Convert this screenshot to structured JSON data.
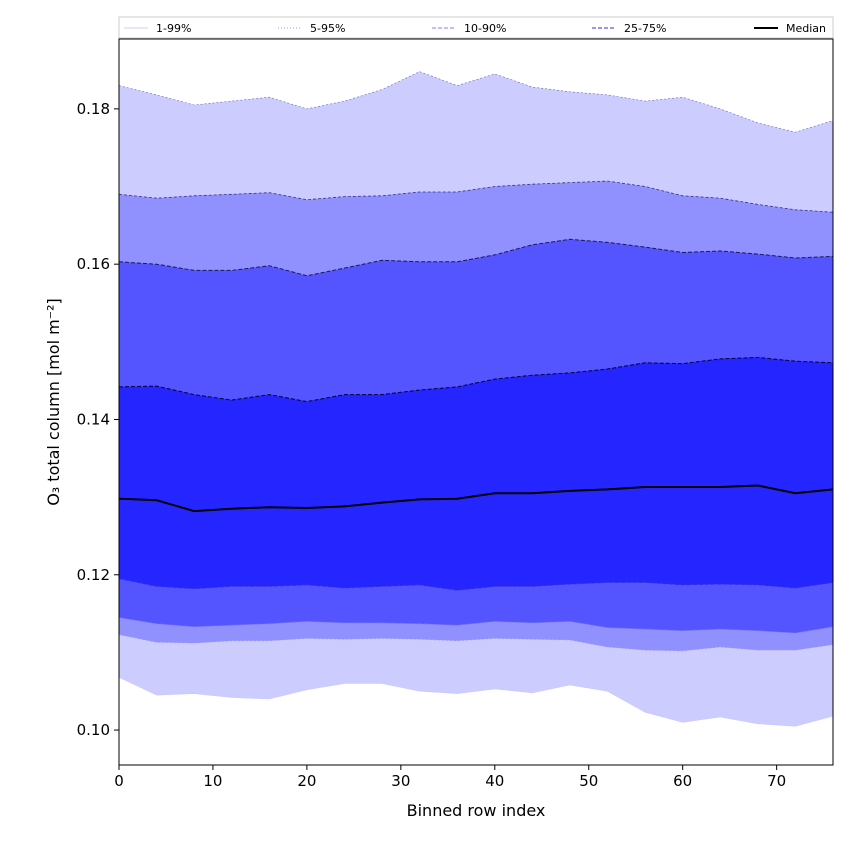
{
  "chart_data": {
    "type": "area",
    "title": "",
    "xlabel": "Binned row index",
    "ylabel": "O₃ total column [mol m⁻²]",
    "xlim": [
      0,
      76
    ],
    "ylim": [
      0.0955,
      0.189
    ],
    "xticks": [
      0,
      10,
      20,
      30,
      40,
      50,
      60,
      70
    ],
    "xtick_labels": [
      "0",
      "10",
      "20",
      "30",
      "40",
      "50",
      "60",
      "70"
    ],
    "yticks": [
      0.1,
      0.12,
      0.14,
      0.16,
      0.18
    ],
    "ytick_labels": [
      "0.10",
      "0.12",
      "0.14",
      "0.16",
      "0.18"
    ],
    "grid": false,
    "legend_position": "top",
    "legend": [
      {
        "label": "1-99%",
        "color": "#ccccff",
        "style": "thin"
      },
      {
        "label": "5-95%",
        "color": "#9999ff",
        "style": "dotted"
      },
      {
        "label": "10-90%",
        "color": "#8080ee",
        "style": "dashed"
      },
      {
        "label": "25-75%",
        "color": "#3333cc",
        "style": "dashed"
      },
      {
        "label": "Median",
        "color": "#000000",
        "style": "solid"
      }
    ],
    "band_colors": {
      "p1_p99": "#ccccff",
      "p5_p95": "#9090ff",
      "p10_p90": "#5555ff",
      "p25_p75": "#2525ff"
    },
    "x": [
      0,
      4,
      8,
      12,
      16,
      20,
      24,
      28,
      32,
      36,
      40,
      44,
      48,
      52,
      56,
      60,
      64,
      68,
      72,
      76
    ],
    "series": [
      {
        "name": "p1",
        "values": [
          0.1068,
          0.1045,
          0.1047,
          0.1042,
          0.104,
          0.1052,
          0.106,
          0.106,
          0.105,
          0.1047,
          0.1053,
          0.1048,
          0.1058,
          0.105,
          0.1023,
          0.101,
          0.1017,
          0.1008,
          0.1005,
          0.1018
        ]
      },
      {
        "name": "p5",
        "values": [
          0.1123,
          0.1113,
          0.1112,
          0.1115,
          0.1115,
          0.1118,
          0.1117,
          0.1118,
          0.1117,
          0.1115,
          0.1118,
          0.1117,
          0.1116,
          0.1107,
          0.1103,
          0.1102,
          0.1107,
          0.1103,
          0.1103,
          0.111
        ]
      },
      {
        "name": "p10",
        "values": [
          0.1145,
          0.1137,
          0.1133,
          0.1135,
          0.1137,
          0.114,
          0.1138,
          0.1138,
          0.1137,
          0.1135,
          0.114,
          0.1138,
          0.114,
          0.1132,
          0.113,
          0.1128,
          0.113,
          0.1128,
          0.1125,
          0.1133
        ]
      },
      {
        "name": "p25",
        "values": [
          0.1195,
          0.1185,
          0.1182,
          0.1185,
          0.1185,
          0.1187,
          0.1183,
          0.1185,
          0.1187,
          0.118,
          0.1185,
          0.1185,
          0.1188,
          0.119,
          0.119,
          0.1187,
          0.1188,
          0.1187,
          0.1183,
          0.119
        ]
      },
      {
        "name": "Median",
        "values": [
          0.1298,
          0.1296,
          0.1282,
          0.1285,
          0.1287,
          0.1286,
          0.1288,
          0.1293,
          0.1297,
          0.1298,
          0.1305,
          0.1305,
          0.1308,
          0.131,
          0.1313,
          0.1313,
          0.1313,
          0.1315,
          0.1305,
          0.131
        ]
      },
      {
        "name": "p75",
        "values": [
          0.1442,
          0.1443,
          0.1432,
          0.1425,
          0.1432,
          0.1423,
          0.1432,
          0.1432,
          0.1438,
          0.1442,
          0.1452,
          0.1457,
          0.146,
          0.1465,
          0.1473,
          0.1472,
          0.1478,
          0.148,
          0.1475,
          0.1473
        ]
      },
      {
        "name": "p90",
        "values": [
          0.1603,
          0.16,
          0.1592,
          0.1592,
          0.1598,
          0.1585,
          0.1595,
          0.1605,
          0.1603,
          0.1603,
          0.1612,
          0.1625,
          0.1632,
          0.1628,
          0.1622,
          0.1615,
          0.1617,
          0.1613,
          0.1608,
          0.161
        ]
      },
      {
        "name": "p95",
        "values": [
          0.169,
          0.1685,
          0.1688,
          0.169,
          0.1692,
          0.1683,
          0.1687,
          0.1688,
          0.1693,
          0.1693,
          0.17,
          0.1703,
          0.1705,
          0.1707,
          0.17,
          0.1688,
          0.1685,
          0.1677,
          0.167,
          0.1667
        ]
      },
      {
        "name": "p99",
        "values": [
          0.183,
          0.1818,
          0.1805,
          0.181,
          0.1815,
          0.18,
          0.181,
          0.1825,
          0.1848,
          0.183,
          0.1845,
          0.1828,
          0.1822,
          0.1818,
          0.181,
          0.1815,
          0.18,
          0.1782,
          0.177,
          0.1785
        ]
      }
    ]
  }
}
